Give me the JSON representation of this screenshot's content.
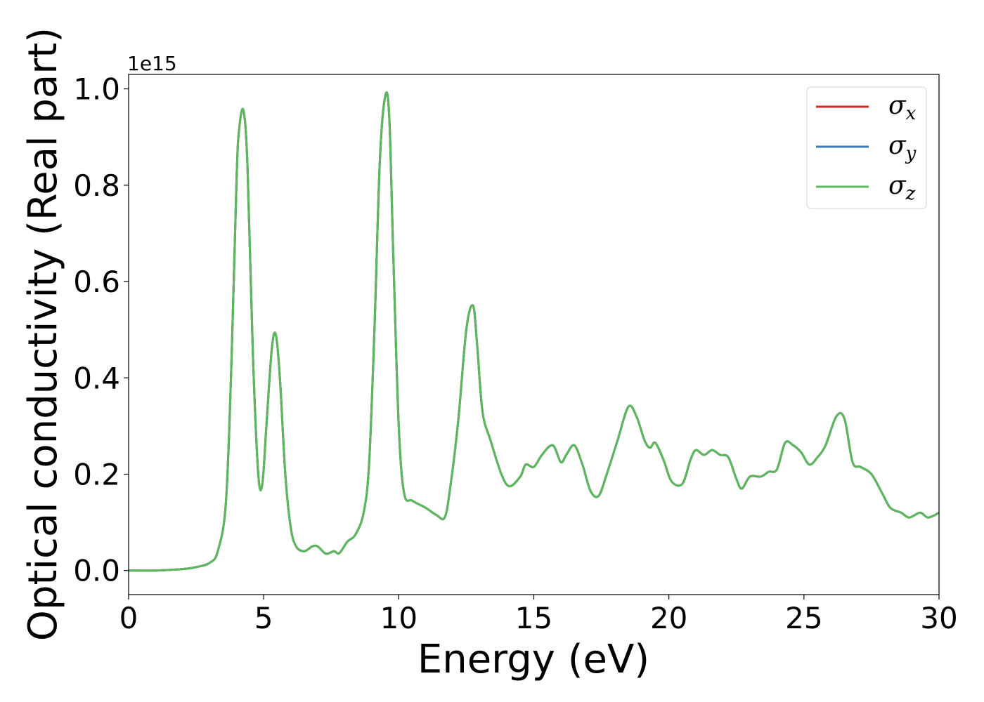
{
  "chart_data": {
    "type": "line",
    "xlabel": "Energy (eV)",
    "ylabel": "Optical conductivity (Real part)",
    "y_offset_label": "1e15",
    "xlim": [
      0,
      30
    ],
    "ylim": [
      -0.05,
      1.03
    ],
    "x_ticks": [
      0,
      5,
      10,
      15,
      20,
      25,
      30
    ],
    "x_tick_labels": [
      "0",
      "5",
      "10",
      "15",
      "20",
      "25",
      "30"
    ],
    "y_ticks": [
      0.0,
      0.2,
      0.4,
      0.6,
      0.8,
      1.0
    ],
    "y_tick_labels": [
      "0.0",
      "0.2",
      "0.4",
      "0.6",
      "0.8",
      "1.0"
    ],
    "grid": false,
    "legend_position": "top-right",
    "legend": [
      {
        "symbol": "σ",
        "subscript": "x",
        "color": "#d62728"
      },
      {
        "symbol": "σ",
        "subscript": "y",
        "color": "#3a7ab8"
      },
      {
        "symbol": "σ",
        "subscript": "z",
        "color": "#5cb85c"
      }
    ],
    "x": [
      0,
      1,
      2,
      2.5,
      3,
      3.3,
      3.6,
      3.8,
      4.0,
      4.1,
      4.25,
      4.4,
      4.6,
      4.8,
      4.95,
      5.1,
      5.3,
      5.45,
      5.6,
      5.8,
      6.0,
      6.2,
      6.5,
      6.8,
      7.0,
      7.3,
      7.6,
      7.8,
      8.1,
      8.4,
      8.7,
      8.9,
      9.1,
      9.3,
      9.5,
      9.65,
      9.8,
      10.0,
      10.2,
      10.5,
      11.0,
      11.4,
      11.7,
      11.9,
      12.2,
      12.5,
      12.75,
      12.9,
      13.1,
      13.4,
      13.8,
      14.1,
      14.5,
      14.7,
      15.0,
      15.3,
      15.7,
      16.0,
      16.2,
      16.5,
      16.8,
      17.1,
      17.4,
      17.7,
      18.1,
      18.5,
      18.8,
      19.1,
      19.3,
      19.5,
      19.8,
      20.1,
      20.5,
      20.8,
      21.0,
      21.3,
      21.6,
      21.9,
      22.2,
      22.5,
      22.7,
      23.0,
      23.4,
      23.7,
      24.0,
      24.3,
      24.6,
      24.9,
      25.2,
      25.5,
      25.8,
      26.2,
      26.5,
      26.8,
      27.1,
      27.5,
      27.9,
      28.2,
      28.6,
      28.9,
      29.3,
      29.6,
      30.0
    ],
    "series": [
      {
        "name": "σx",
        "color": "#d62728",
        "values": [
          0.0,
          0.0,
          0.003,
          0.007,
          0.016,
          0.04,
          0.14,
          0.42,
          0.82,
          0.92,
          0.955,
          0.84,
          0.45,
          0.2,
          0.18,
          0.3,
          0.46,
          0.49,
          0.4,
          0.2,
          0.09,
          0.05,
          0.04,
          0.05,
          0.05,
          0.035,
          0.04,
          0.036,
          0.06,
          0.075,
          0.12,
          0.22,
          0.5,
          0.85,
          0.985,
          0.94,
          0.65,
          0.3,
          0.16,
          0.145,
          0.13,
          0.115,
          0.11,
          0.17,
          0.31,
          0.5,
          0.55,
          0.47,
          0.33,
          0.27,
          0.2,
          0.175,
          0.195,
          0.22,
          0.215,
          0.24,
          0.26,
          0.225,
          0.24,
          0.26,
          0.22,
          0.165,
          0.155,
          0.2,
          0.27,
          0.34,
          0.32,
          0.27,
          0.255,
          0.265,
          0.23,
          0.185,
          0.18,
          0.23,
          0.25,
          0.24,
          0.25,
          0.24,
          0.235,
          0.19,
          0.17,
          0.195,
          0.195,
          0.205,
          0.21,
          0.265,
          0.26,
          0.245,
          0.22,
          0.235,
          0.26,
          0.32,
          0.315,
          0.225,
          0.215,
          0.2,
          0.16,
          0.13,
          0.12,
          0.11,
          0.12,
          0.11,
          0.12
        ]
      },
      {
        "name": "σy",
        "color": "#3a7ab8",
        "values": [
          0.0,
          0.0,
          0.003,
          0.007,
          0.016,
          0.04,
          0.14,
          0.42,
          0.82,
          0.92,
          0.955,
          0.84,
          0.45,
          0.2,
          0.18,
          0.3,
          0.46,
          0.49,
          0.4,
          0.2,
          0.09,
          0.05,
          0.04,
          0.05,
          0.05,
          0.035,
          0.04,
          0.036,
          0.06,
          0.075,
          0.12,
          0.22,
          0.5,
          0.85,
          0.985,
          0.94,
          0.65,
          0.3,
          0.16,
          0.145,
          0.13,
          0.115,
          0.11,
          0.17,
          0.31,
          0.5,
          0.55,
          0.47,
          0.33,
          0.27,
          0.2,
          0.175,
          0.195,
          0.22,
          0.215,
          0.24,
          0.26,
          0.225,
          0.24,
          0.26,
          0.22,
          0.165,
          0.155,
          0.2,
          0.27,
          0.34,
          0.32,
          0.27,
          0.255,
          0.265,
          0.23,
          0.185,
          0.18,
          0.23,
          0.25,
          0.24,
          0.25,
          0.24,
          0.235,
          0.19,
          0.17,
          0.195,
          0.195,
          0.205,
          0.21,
          0.265,
          0.26,
          0.245,
          0.22,
          0.235,
          0.26,
          0.32,
          0.315,
          0.225,
          0.215,
          0.2,
          0.16,
          0.13,
          0.12,
          0.11,
          0.12,
          0.11,
          0.12
        ]
      },
      {
        "name": "σz",
        "color": "#5cb85c",
        "values": [
          0.0,
          0.0,
          0.003,
          0.007,
          0.016,
          0.04,
          0.14,
          0.42,
          0.82,
          0.92,
          0.955,
          0.84,
          0.45,
          0.2,
          0.18,
          0.3,
          0.46,
          0.49,
          0.4,
          0.2,
          0.09,
          0.05,
          0.04,
          0.05,
          0.05,
          0.035,
          0.04,
          0.036,
          0.06,
          0.075,
          0.12,
          0.22,
          0.5,
          0.85,
          0.985,
          0.94,
          0.65,
          0.3,
          0.16,
          0.145,
          0.13,
          0.115,
          0.11,
          0.17,
          0.31,
          0.5,
          0.55,
          0.47,
          0.33,
          0.27,
          0.2,
          0.175,
          0.195,
          0.22,
          0.215,
          0.24,
          0.26,
          0.225,
          0.24,
          0.26,
          0.22,
          0.165,
          0.155,
          0.2,
          0.27,
          0.34,
          0.32,
          0.27,
          0.255,
          0.265,
          0.23,
          0.185,
          0.18,
          0.23,
          0.25,
          0.24,
          0.25,
          0.24,
          0.235,
          0.19,
          0.17,
          0.195,
          0.195,
          0.205,
          0.21,
          0.265,
          0.26,
          0.245,
          0.22,
          0.235,
          0.26,
          0.32,
          0.315,
          0.225,
          0.215,
          0.2,
          0.16,
          0.13,
          0.12,
          0.11,
          0.12,
          0.11,
          0.12
        ]
      }
    ]
  }
}
